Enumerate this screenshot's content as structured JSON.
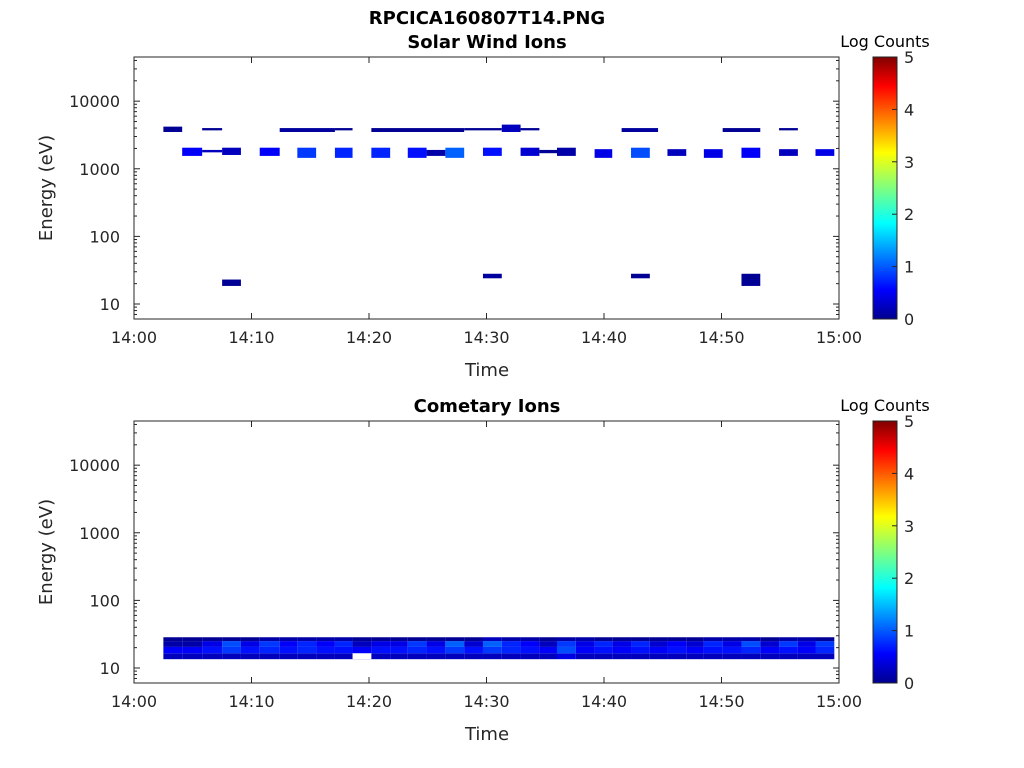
{
  "figure_title": "RPCICA160807T14.PNG",
  "colors": {
    "axis": "#262626",
    "background": "#ffffff"
  },
  "chart_data": [
    {
      "type": "heatmap",
      "title": "Solar Wind Ions",
      "xlabel": "Time",
      "ylabel": "Energy (eV)",
      "x_range": [
        "14:00",
        "15:00"
      ],
      "x_ticks": [
        "14:00",
        "14:10",
        "14:20",
        "14:30",
        "14:40",
        "14:50",
        "15:00"
      ],
      "y_scale": "log",
      "ylim": [
        6,
        45000
      ],
      "y_ticks": [
        "10",
        "100",
        "1000",
        "10000"
      ],
      "colorbar": {
        "label": "Log Counts",
        "range": [
          0,
          5
        ],
        "ticks": [
          "0",
          "1",
          "2",
          "3",
          "4",
          "5"
        ],
        "colormap": "jet"
      },
      "cells": [
        {
          "t0": 2.5,
          "t1": 4.1,
          "e0": 3500,
          "e1": 4200,
          "v": 0.1
        },
        {
          "t0": 5.8,
          "t1": 7.5,
          "e0": 3700,
          "e1": 4000,
          "v": 0.1
        },
        {
          "t0": 4.1,
          "t1": 5.8,
          "e0": 1550,
          "e1": 2050,
          "v": 0.6
        },
        {
          "t0": 5.8,
          "t1": 7.5,
          "e0": 1750,
          "e1": 1900,
          "v": 0.3
        },
        {
          "t0": 7.5,
          "t1": 9.1,
          "e0": 1600,
          "e1": 2050,
          "v": 0.3
        },
        {
          "t0": 7.5,
          "t1": 9.1,
          "e0": 18.5,
          "e1": 23,
          "v": 0.1
        },
        {
          "t0": 10.7,
          "t1": 12.4,
          "e0": 1550,
          "e1": 2050,
          "v": 0.6
        },
        {
          "t0": 12.4,
          "t1": 17.1,
          "e0": 3500,
          "e1": 4000,
          "v": 0.15
        },
        {
          "t0": 17.1,
          "t1": 18.6,
          "e0": 3700,
          "e1": 4000,
          "v": 0.1
        },
        {
          "t0": 13.9,
          "t1": 15.5,
          "e0": 1450,
          "e1": 2050,
          "v": 0.9
        },
        {
          "t0": 17.1,
          "t1": 18.6,
          "e0": 1450,
          "e1": 2050,
          "v": 0.8
        },
        {
          "t0": 20.2,
          "t1": 21.8,
          "e0": 1450,
          "e1": 2050,
          "v": 0.8
        },
        {
          "t0": 20.2,
          "t1": 28.1,
          "e0": 3500,
          "e1": 4000,
          "v": 0.1
        },
        {
          "t0": 23.3,
          "t1": 24.9,
          "e0": 1450,
          "e1": 2050,
          "v": 0.7
        },
        {
          "t0": 24.9,
          "t1": 26.5,
          "e0": 1550,
          "e1": 1900,
          "v": 0.2
        },
        {
          "t0": 26.5,
          "t1": 28.1,
          "e0": 1450,
          "e1": 2050,
          "v": 1.1
        },
        {
          "t0": 28.1,
          "t1": 29.7,
          "e0": 3700,
          "e1": 4000,
          "v": 0.1
        },
        {
          "t0": 29.7,
          "t1": 31.3,
          "e0": 1550,
          "e1": 2050,
          "v": 0.7
        },
        {
          "t0": 29.7,
          "t1": 31.3,
          "e0": 3700,
          "e1": 4000,
          "v": 0.1
        },
        {
          "t0": 29.7,
          "t1": 31.3,
          "e0": 24,
          "e1": 28,
          "v": 0.15
        },
        {
          "t0": 31.3,
          "t1": 32.9,
          "e0": 3500,
          "e1": 4500,
          "v": 0.3
        },
        {
          "t0": 32.9,
          "t1": 34.5,
          "e0": 3700,
          "e1": 4000,
          "v": 0.1
        },
        {
          "t0": 32.9,
          "t1": 34.5,
          "e0": 1550,
          "e1": 2050,
          "v": 0.4
        },
        {
          "t0": 34.5,
          "t1": 36.0,
          "e0": 1700,
          "e1": 1900,
          "v": 0.1
        },
        {
          "t0": 36.0,
          "t1": 37.6,
          "e0": 1550,
          "e1": 2050,
          "v": 0.2
        },
        {
          "t0": 39.2,
          "t1": 40.7,
          "e0": 1450,
          "e1": 1950,
          "v": 0.5
        },
        {
          "t0": 41.5,
          "t1": 44.6,
          "e0": 3500,
          "e1": 4000,
          "v": 0.15
        },
        {
          "t0": 42.3,
          "t1": 43.9,
          "e0": 1450,
          "e1": 2050,
          "v": 1.0
        },
        {
          "t0": 42.3,
          "t1": 43.9,
          "e0": 24,
          "e1": 28,
          "v": 0.1
        },
        {
          "t0": 45.4,
          "t1": 47.0,
          "e0": 1550,
          "e1": 1950,
          "v": 0.3
        },
        {
          "t0": 48.5,
          "t1": 50.1,
          "e0": 1450,
          "e1": 1950,
          "v": 0.5
        },
        {
          "t0": 50.1,
          "t1": 53.3,
          "e0": 3500,
          "e1": 4000,
          "v": 0.1
        },
        {
          "t0": 51.7,
          "t1": 53.3,
          "e0": 1450,
          "e1": 2050,
          "v": 0.6
        },
        {
          "t0": 51.7,
          "t1": 53.3,
          "e0": 18.5,
          "e1": 28,
          "v": 0.1
        },
        {
          "t0": 54.9,
          "t1": 56.5,
          "e0": 3700,
          "e1": 4000,
          "v": 0.1
        },
        {
          "t0": 54.9,
          "t1": 56.5,
          "e0": 1550,
          "e1": 1950,
          "v": 0.3
        },
        {
          "t0": 58.0,
          "t1": 59.6,
          "e0": 1550,
          "e1": 1950,
          "v": 0.5
        }
      ]
    },
    {
      "type": "heatmap",
      "title": "Cometary Ions",
      "xlabel": "Time",
      "ylabel": "Energy (eV)",
      "x_range": [
        "14:00",
        "15:00"
      ],
      "x_ticks": [
        "14:00",
        "14:10",
        "14:20",
        "14:30",
        "14:40",
        "14:50",
        "15:00"
      ],
      "y_scale": "log",
      "ylim": [
        6,
        45000
      ],
      "y_ticks": [
        "10",
        "100",
        "1000",
        "10000"
      ],
      "colorbar": {
        "label": "Log Counts",
        "range": [
          0,
          5
        ],
        "ticks": [
          "0",
          "1",
          "2",
          "3",
          "4",
          "5"
        ],
        "colormap": "jet"
      },
      "energy_bins": [
        13.5,
        16.5,
        20.5,
        25,
        28.5
      ],
      "time_bins": [
        2.5,
        4.1,
        5.8,
        7.5,
        9.1,
        10.7,
        12.4,
        13.9,
        15.5,
        17.1,
        18.6,
        20.2,
        21.8,
        23.3,
        24.9,
        26.5,
        28.1,
        29.7,
        31.3,
        32.9,
        34.5,
        36.0,
        37.6,
        39.2,
        40.7,
        42.3,
        43.9,
        45.4,
        47.0,
        48.5,
        50.1,
        51.7,
        53.3,
        54.9,
        56.5,
        58.0,
        59.6
      ],
      "values": [
        [
          0.3,
          0.3,
          0.3,
          0.3,
          0.3,
          0.3,
          0.3,
          0.3,
          0.3,
          0.3,
          0.3,
          0.3,
          0.3,
          0.3,
          0.3,
          0.3,
          0.3,
          0.3,
          0.3,
          0.3,
          0.3,
          0.5,
          0.3,
          0.3,
          0.3,
          0.3,
          0.3,
          0.3,
          0.3,
          0.3,
          0.3,
          0.3,
          0.3,
          0.3,
          0.3,
          0.3
        ],
        [
          0.6,
          0.6,
          0.7,
          0.9,
          0.7,
          0.8,
          0.7,
          0.8,
          0.7,
          0.7,
          0.6,
          0.7,
          0.7,
          0.8,
          0.7,
          0.9,
          0.7,
          0.9,
          0.8,
          0.7,
          0.6,
          1.0,
          0.6,
          0.7,
          0.6,
          0.7,
          0.6,
          0.7,
          0.6,
          0.7,
          0.7,
          0.8,
          0.6,
          0.7,
          0.6,
          0.8
        ],
        [
          0.2,
          0.2,
          0.5,
          1.0,
          0.5,
          0.9,
          0.6,
          0.8,
          0.6,
          0.8,
          0.3,
          0.5,
          0.5,
          0.9,
          0.5,
          1.1,
          0.4,
          1.1,
          0.8,
          0.6,
          0.3,
          0.9,
          0.5,
          0.8,
          0.5,
          0.8,
          0.4,
          0.6,
          0.4,
          0.8,
          0.5,
          1.0,
          0.4,
          0.9,
          0.5,
          0.9
        ],
        [
          0.1,
          0.1,
          0.1,
          0.1,
          0.1,
          0.2,
          0.2,
          0.2,
          0.2,
          0.2,
          0.1,
          0.1,
          0.1,
          0.1,
          0.1,
          0.1,
          0.1,
          0.3,
          0.2,
          0.2,
          0.1,
          0.2,
          0.2,
          0.1,
          0.1,
          0.1,
          0.1,
          0.1,
          0.1,
          0.2,
          0.2,
          0.2,
          0.1,
          0.2,
          0.2,
          0.1
        ],
        [
          null,
          null,
          null,
          null,
          null,
          null,
          null,
          0.1,
          null,
          0.1,
          null,
          0.1,
          null,
          null,
          null,
          null,
          null,
          0.1,
          null,
          null,
          null,
          null,
          null,
          null,
          null,
          null,
          null,
          null,
          null,
          null,
          null,
          null,
          null,
          null,
          null,
          0.1
        ]
      ],
      "gaps": [
        {
          "t0": 18.6,
          "t1": 20.2,
          "e0": 13.5,
          "e1": 16.5
        }
      ]
    }
  ]
}
